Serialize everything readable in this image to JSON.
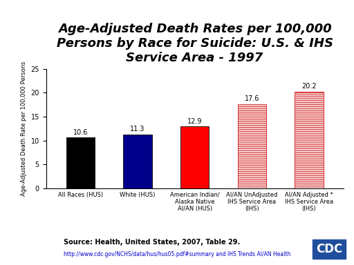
{
  "chart_data": {
    "type": "bar",
    "title": "Age-Adjusted Death Rates per 100,000 Persons by Race for Suicide: U.S. & IHS Service Area - 1997",
    "y_label": "Age-Adjusted Death Rate per 100,000 Persons",
    "categories": [
      "All Races (HUS)",
      "White (HUS)",
      "American Indian/ Alaska Native AI/AN (HUS)",
      "AI/AN UnAdjusted IHS Service Area (IHS)",
      "AI/AN Adjusted * IHS Service Area (IHS)"
    ],
    "values": [
      10.6,
      11.3,
      12.9,
      17.6,
      20.2
    ],
    "colors": [
      "#000000",
      "#00008b",
      "#ff0000",
      "#d94040",
      "#d94040"
    ],
    "ylim": [
      0,
      25
    ],
    "yticks": [
      0,
      5,
      10,
      15,
      20,
      25
    ],
    "data_labels": true,
    "grid": false,
    "annotations": [
      "Source: Health, United States, 2007, Table 29.",
      "http://www.cdc.gov/NCHS/data/hus/hus05.pdf#summary and IHS Trends AI/AN Health",
      "CDC"
    ]
  }
}
